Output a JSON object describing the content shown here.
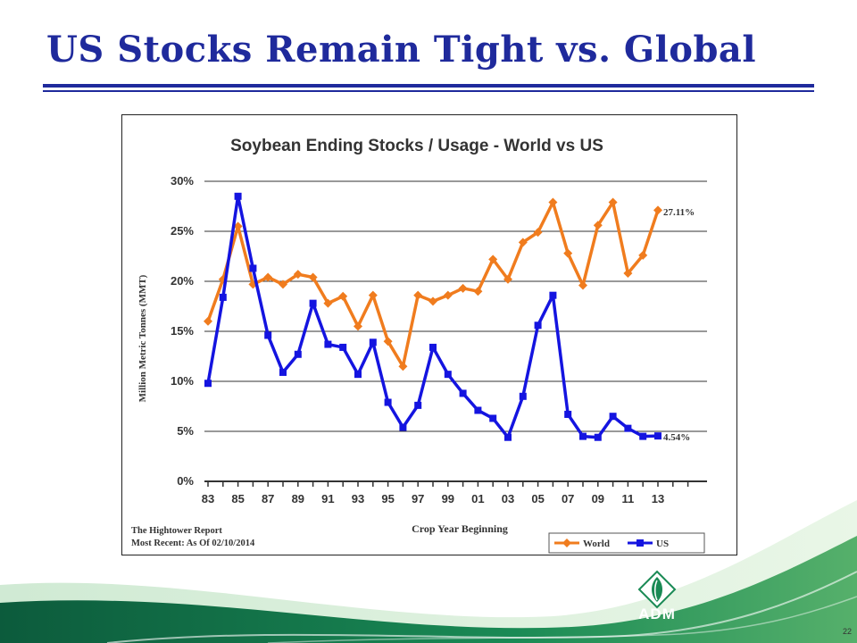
{
  "slide": {
    "title": "US Stocks Remain Tight vs. Global",
    "page_number": "22",
    "logo_text": "ADM"
  },
  "colors": {
    "title": "#1f2a9c",
    "world": "#f07c1e",
    "us": "#1414e0",
    "grid": "#333333"
  },
  "chart_data": {
    "type": "line",
    "title": "Soybean Ending Stocks / Usage - World vs US",
    "xlabel": "Crop Year Beginning",
    "ylabel": "Million Metric Tonnes (MMT)",
    "x": [
      "83",
      "84",
      "85",
      "86",
      "87",
      "88",
      "89",
      "90",
      "91",
      "92",
      "93",
      "94",
      "95",
      "96",
      "97",
      "98",
      "99",
      "00",
      "01",
      "02",
      "03",
      "04",
      "05",
      "06",
      "07",
      "08",
      "09",
      "10",
      "11",
      "12",
      "13"
    ],
    "x_tick_labels": [
      "83",
      "85",
      "87",
      "89",
      "91",
      "93",
      "95",
      "97",
      "99",
      "01",
      "03",
      "05",
      "07",
      "09",
      "11",
      "13"
    ],
    "y_tick_labels": [
      "0%",
      "5%",
      "10%",
      "15%",
      "20%",
      "25%",
      "30%"
    ],
    "ylim": [
      0,
      30
    ],
    "grid": true,
    "legend": "bottom-right",
    "series": [
      {
        "name": "World",
        "values": [
          16.0,
          20.2,
          25.5,
          19.7,
          20.4,
          19.7,
          20.7,
          20.4,
          17.8,
          18.5,
          15.5,
          18.6,
          14.0,
          11.5,
          18.6,
          18.0,
          18.6,
          19.3,
          19.0,
          22.2,
          20.2,
          23.9,
          24.9,
          27.9,
          22.8,
          19.6,
          25.6,
          27.9,
          20.8,
          22.6,
          27.11
        ]
      },
      {
        "name": "US",
        "values": [
          9.8,
          18.4,
          28.5,
          21.3,
          14.6,
          10.9,
          12.7,
          17.8,
          13.7,
          13.4,
          10.7,
          13.9,
          7.9,
          5.4,
          7.6,
          13.4,
          10.7,
          8.8,
          7.1,
          6.3,
          4.4,
          8.5,
          15.6,
          18.6,
          6.7,
          4.5,
          4.4,
          6.5,
          5.3,
          4.5,
          4.54
        ]
      }
    ],
    "annotations": [
      "27.11%",
      "4.54%"
    ],
    "source_line1": "The Hightower Report",
    "source_line2": "Most Recent: As Of 02/10/2014"
  }
}
